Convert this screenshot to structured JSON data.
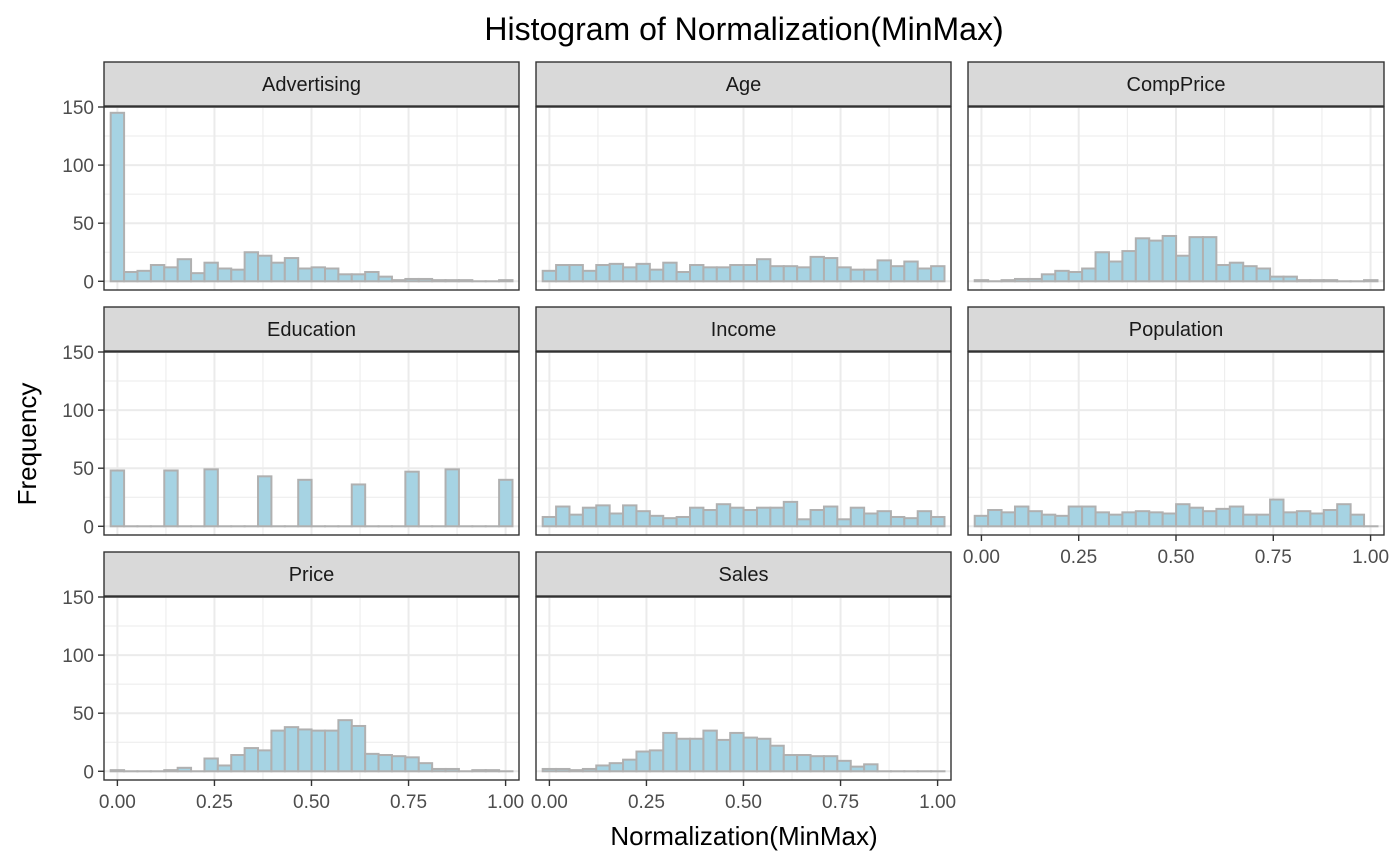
{
  "chart_data": {
    "type": "bar",
    "title": "Histogram of Normalization(MinMax)",
    "xlabel": "Normalization(MinMax)",
    "ylabel": "Frequency",
    "xlim": [
      -0.0345,
      1.0345
    ],
    "ylim": [
      -7.5,
      150
    ],
    "xticks": [
      "0.00",
      "0.25",
      "0.50",
      "0.75",
      "1.00"
    ],
    "xtick_values": [
      0,
      0.25,
      0.5,
      0.75,
      1.0
    ],
    "yticks": [
      "0",
      "50",
      "100",
      "150"
    ],
    "ytick_values": [
      0,
      50,
      100,
      150
    ],
    "bins": 30,
    "bin_width": 0.0345,
    "grid": true,
    "colors": {
      "fill": "#a6d3e3",
      "outline": "#b0b0b0",
      "strip": "#d9d9d9",
      "grid": "#ebebeb"
    },
    "series": [
      {
        "name": "Advertising",
        "values": [
          145,
          8,
          9,
          14,
          12,
          19,
          7,
          16,
          11,
          10,
          25,
          22,
          16,
          20,
          11,
          12,
          11,
          6,
          6,
          8,
          4,
          1,
          2,
          2,
          1,
          1,
          1,
          0,
          0,
          1
        ]
      },
      {
        "name": "Age",
        "values": [
          9,
          14,
          14,
          9,
          14,
          15,
          12,
          15,
          10,
          16,
          8,
          14,
          12,
          12,
          14,
          14,
          19,
          13,
          13,
          12,
          21,
          20,
          12,
          10,
          10,
          18,
          13,
          17,
          11,
          13
        ]
      },
      {
        "name": "CompPrice",
        "values": [
          1,
          0,
          1,
          2,
          2,
          6,
          9,
          8,
          11,
          25,
          17,
          26,
          37,
          35,
          39,
          22,
          38,
          38,
          14,
          16,
          13,
          11,
          4,
          4,
          1,
          1,
          1,
          0,
          0,
          1
        ]
      },
      {
        "name": "Education",
        "values": [
          48,
          0,
          0,
          0,
          48,
          0,
          0,
          49,
          0,
          0,
          0,
          43,
          0,
          0,
          40,
          0,
          0,
          0,
          36,
          0,
          0,
          0,
          47,
          0,
          0,
          49,
          0,
          0,
          0,
          40
        ]
      },
      {
        "name": "Income",
        "values": [
          8,
          17,
          10,
          16,
          18,
          11,
          18,
          13,
          9,
          7,
          8,
          16,
          14,
          19,
          16,
          14,
          16,
          16,
          21,
          6,
          14,
          17,
          6,
          16,
          11,
          13,
          8,
          7,
          13,
          8
        ]
      },
      {
        "name": "Population",
        "values": [
          9,
          14,
          12,
          17,
          13,
          10,
          9,
          17,
          17,
          12,
          10,
          12,
          13,
          12,
          11,
          19,
          16,
          13,
          15,
          17,
          10,
          10,
          23,
          12,
          13,
          11,
          14,
          19,
          10,
          0
        ]
      },
      {
        "name": "Price",
        "values": [
          1,
          0,
          0,
          0,
          1,
          3,
          0,
          11,
          5,
          14,
          20,
          18,
          35,
          38,
          36,
          35,
          35,
          44,
          39,
          15,
          14,
          13,
          12,
          7,
          2,
          2,
          0,
          1,
          1,
          0
        ]
      },
      {
        "name": "Sales",
        "values": [
          2,
          2,
          1,
          2,
          5,
          7,
          10,
          17,
          18,
          33,
          28,
          28,
          35,
          27,
          33,
          29,
          28,
          22,
          14,
          14,
          13,
          13,
          9,
          4,
          6,
          0,
          0,
          0,
          0,
          0
        ]
      }
    ]
  }
}
